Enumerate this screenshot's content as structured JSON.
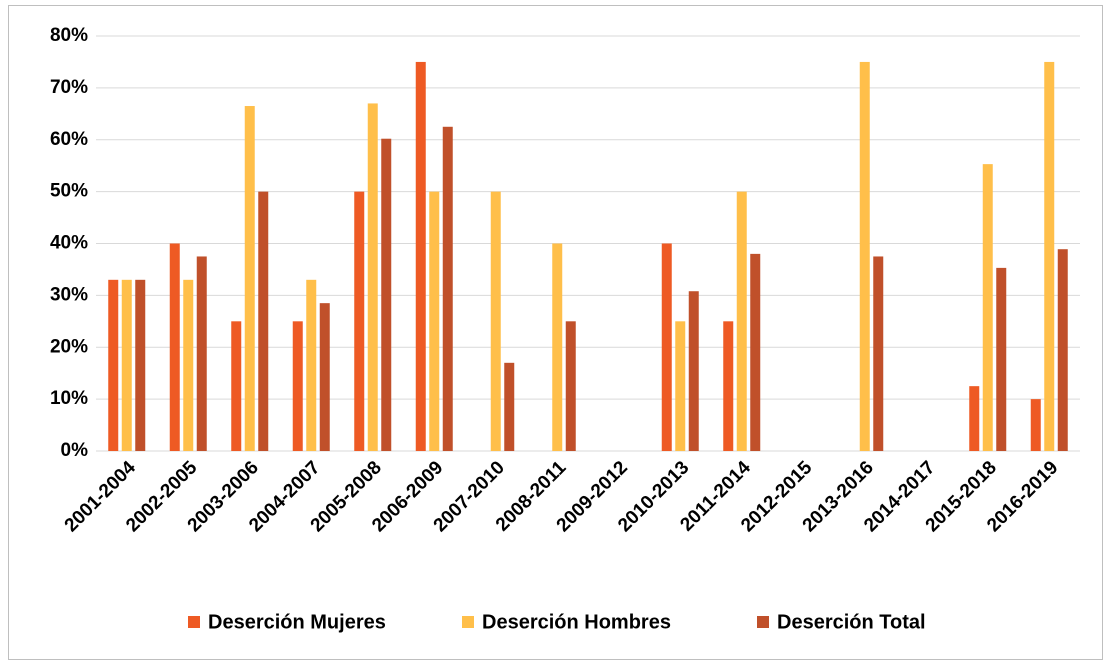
{
  "chart_data": {
    "type": "bar",
    "categories": [
      "2001-2004",
      "2002-2005",
      "2003-2006",
      "2004-2007",
      "2005-2008",
      "2006-2009",
      "2007-2010",
      "2008-2011",
      "2009-2012",
      "2010-2013",
      "2011-2014",
      "2012-2015",
      "2013-2016",
      "2014-2017",
      "2015-2018",
      "2016-2019"
    ],
    "series": [
      {
        "name": "Deserción Mujeres",
        "color": "#ee5a24",
        "values": [
          33,
          40,
          25,
          25,
          50,
          75,
          0,
          0,
          0,
          40,
          25,
          0,
          0,
          0,
          12.5,
          10
        ]
      },
      {
        "name": "Deserción Hombres",
        "color": "#ffbf4a",
        "values": [
          33,
          33,
          66.5,
          33,
          67,
          50,
          50,
          40,
          0,
          25,
          50,
          0,
          75,
          0,
          55.3,
          75
        ]
      },
      {
        "name": "Deserción Total",
        "color": "#c0502a",
        "values": [
          33,
          37.5,
          50,
          28.5,
          60.2,
          62.5,
          17,
          25,
          0,
          30.8,
          38,
          0,
          37.5,
          0,
          35.3,
          38.9
        ]
      }
    ],
    "ylim": [
      0,
      80
    ],
    "yticks": [
      {
        "value": 0,
        "label": "0%"
      },
      {
        "value": 10,
        "label": "10%"
      },
      {
        "value": 20,
        "label": "20%"
      },
      {
        "value": 30,
        "label": "30%"
      },
      {
        "value": 40,
        "label": "40%"
      },
      {
        "value": 50,
        "label": "50%"
      },
      {
        "value": 60,
        "label": "60%"
      },
      {
        "value": 70,
        "label": "70%"
      },
      {
        "value": 80,
        "label": "80%"
      }
    ],
    "grid": true,
    "legend": "bottom"
  }
}
